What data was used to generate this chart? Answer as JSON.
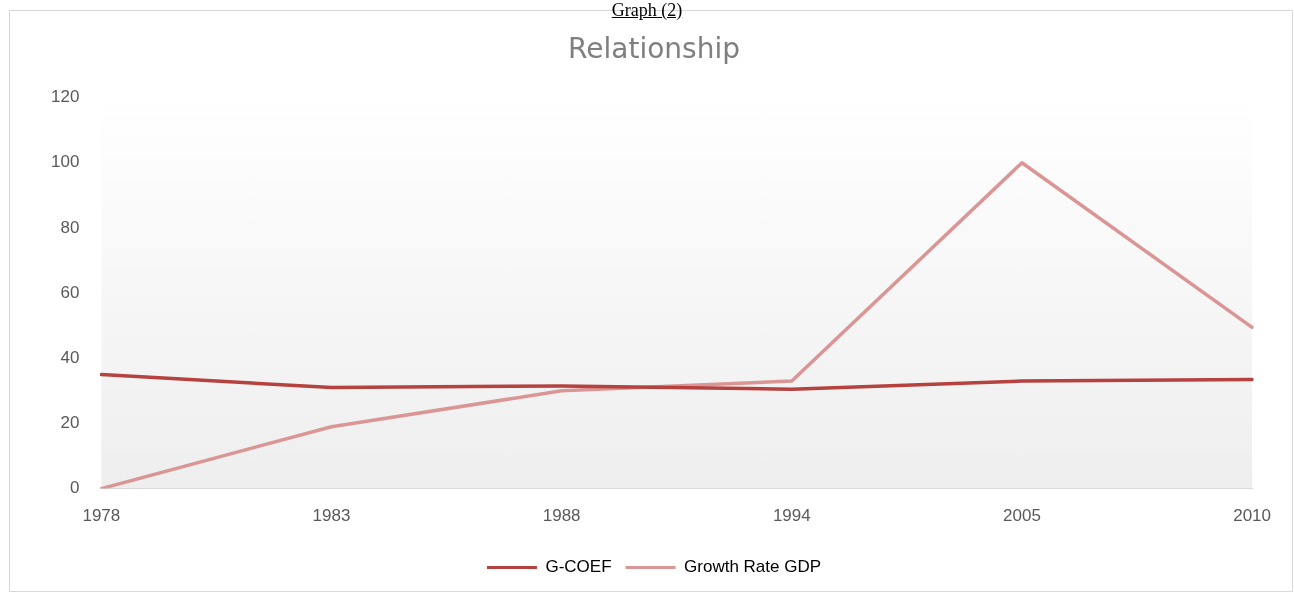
{
  "chart_data": {
    "type": "line",
    "title": "Relationship",
    "annotations": [
      "Graph (2)"
    ],
    "categories": [
      "1978",
      "1983",
      "1988",
      "1994",
      "2005",
      "2010"
    ],
    "series": [
      {
        "name": "G-COEF",
        "color": "#b5423f",
        "values": [
          35,
          31,
          31.5,
          30.5,
          33,
          33.5
        ]
      },
      {
        "name": "Growth Rate GDP",
        "color": "#d99694",
        "values": [
          0,
          19,
          30,
          33,
          100,
          49.5
        ]
      }
    ],
    "ylim": [
      0,
      120
    ],
    "yticks": [
      0,
      20,
      40,
      60,
      80,
      100,
      120
    ],
    "grid": false,
    "legend": "bottom",
    "marker": "none",
    "line_style": "solid"
  }
}
